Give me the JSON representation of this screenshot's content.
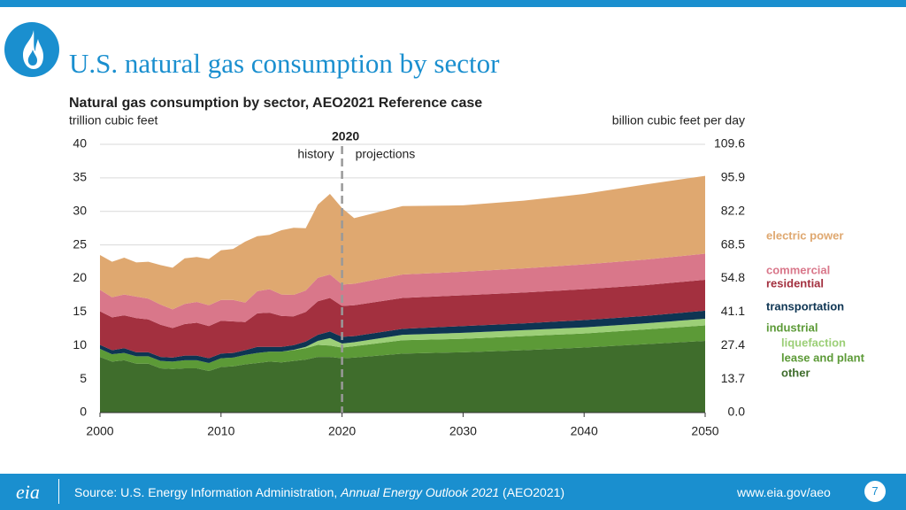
{
  "header": {
    "title": "U.S. natural gas consumption by sector"
  },
  "chart_data": {
    "type": "stacked-area",
    "title": "Natural gas consumption by sector, AEO2021 Reference case",
    "ylabel": "trillion cubic feet",
    "y2label": "billion cubic feet per day",
    "x": [
      2000,
      2001,
      2002,
      2003,
      2004,
      2005,
      2006,
      2007,
      2008,
      2009,
      2010,
      2011,
      2012,
      2013,
      2014,
      2015,
      2016,
      2017,
      2018,
      2019,
      2020,
      2021,
      2025,
      2030,
      2035,
      2040,
      2045,
      2050
    ],
    "series": [
      {
        "name": "other",
        "color": "#3f6d2c",
        "values": [
          8.3,
          7.6,
          7.8,
          7.3,
          7.3,
          6.6,
          6.5,
          6.6,
          6.6,
          6.2,
          6.8,
          6.9,
          7.2,
          7.4,
          7.6,
          7.5,
          7.7,
          7.9,
          8.3,
          8.3,
          8.1,
          8.2,
          8.8,
          9.0,
          9.3,
          9.7,
          10.2,
          10.7
        ]
      },
      {
        "name": "lease and plant",
        "color": "#5c9a37",
        "values": [
          1.2,
          1.1,
          1.1,
          1.1,
          1.1,
          1.1,
          1.1,
          1.2,
          1.2,
          1.2,
          1.3,
          1.3,
          1.4,
          1.5,
          1.5,
          1.6,
          1.6,
          1.7,
          1.8,
          1.7,
          1.6,
          1.7,
          2.0,
          2.0,
          2.1,
          2.1,
          2.2,
          2.3
        ]
      },
      {
        "name": "liquefaction",
        "color": "#9ccf77",
        "values": [
          0,
          0,
          0,
          0,
          0,
          0,
          0,
          0,
          0,
          0,
          0,
          0,
          0,
          0,
          0,
          0,
          0.05,
          0.2,
          0.6,
          1.1,
          0.6,
          0.6,
          0.8,
          0.9,
          0.9,
          0.9,
          0.9,
          1.0
        ]
      },
      {
        "name": "transportation",
        "color": "#0e3553",
        "values": [
          0.6,
          0.6,
          0.7,
          0.6,
          0.6,
          0.6,
          0.6,
          0.7,
          0.7,
          0.7,
          0.7,
          0.7,
          0.7,
          0.9,
          0.7,
          0.7,
          0.7,
          0.8,
          0.9,
          1.0,
          1.0,
          0.9,
          0.9,
          1.0,
          1.0,
          1.1,
          1.1,
          1.2
        ]
      },
      {
        "name": "residential",
        "color": "#a3303f",
        "values": [
          5.0,
          4.9,
          4.9,
          5.1,
          4.9,
          4.8,
          4.4,
          4.7,
          4.9,
          4.8,
          4.9,
          4.7,
          4.2,
          5.0,
          5.1,
          4.6,
          4.3,
          4.4,
          5.0,
          5.0,
          4.6,
          4.6,
          4.6,
          4.6,
          4.6,
          4.6,
          4.6,
          4.6
        ]
      },
      {
        "name": "commercial",
        "color": "#d9778a",
        "values": [
          3.2,
          3.0,
          3.1,
          3.2,
          3.1,
          3.0,
          2.8,
          3.0,
          3.1,
          3.1,
          3.1,
          3.2,
          2.9,
          3.3,
          3.5,
          3.2,
          3.2,
          3.2,
          3.5,
          3.5,
          3.2,
          3.2,
          3.5,
          3.5,
          3.6,
          3.7,
          3.8,
          3.9
        ]
      },
      {
        "name": "electric power",
        "color": "#dfa870",
        "values": [
          5.2,
          5.3,
          5.5,
          5.1,
          5.5,
          5.9,
          6.2,
          6.8,
          6.7,
          6.9,
          7.4,
          7.6,
          9.1,
          8.2,
          8.1,
          9.6,
          10.0,
          9.3,
          10.9,
          12.0,
          11.4,
          9.8,
          10.2,
          9.9,
          10.1,
          10.5,
          11.2,
          11.6
        ]
      }
    ],
    "legend_group": "industrial",
    "xlim": [
      2000,
      2050
    ],
    "xticks": [
      2000,
      2010,
      2020,
      2030,
      2040,
      2050
    ],
    "ylim": [
      0,
      40
    ],
    "yticks": [
      0,
      5,
      10,
      15,
      20,
      25,
      30,
      35,
      40
    ],
    "y2lim": [
      0,
      109.6
    ],
    "y2ticks": [
      {
        "value": 0,
        "label": "0.0"
      },
      13.7,
      27.4,
      41.1,
      54.8,
      68.5,
      82.2,
      95.9,
      109.6
    ],
    "grid": true,
    "divider": {
      "x": 2020,
      "label": "2020",
      "left": "history",
      "right": "projections"
    }
  },
  "footer": {
    "logo": "eia",
    "source_prefix": "Source: U.S. Energy Information Administration,",
    "source_title": "Annual Energy Outlook 2021",
    "source_suffix": "(AEO2021)",
    "url": "www.eia.gov/aeo",
    "page": "7"
  }
}
